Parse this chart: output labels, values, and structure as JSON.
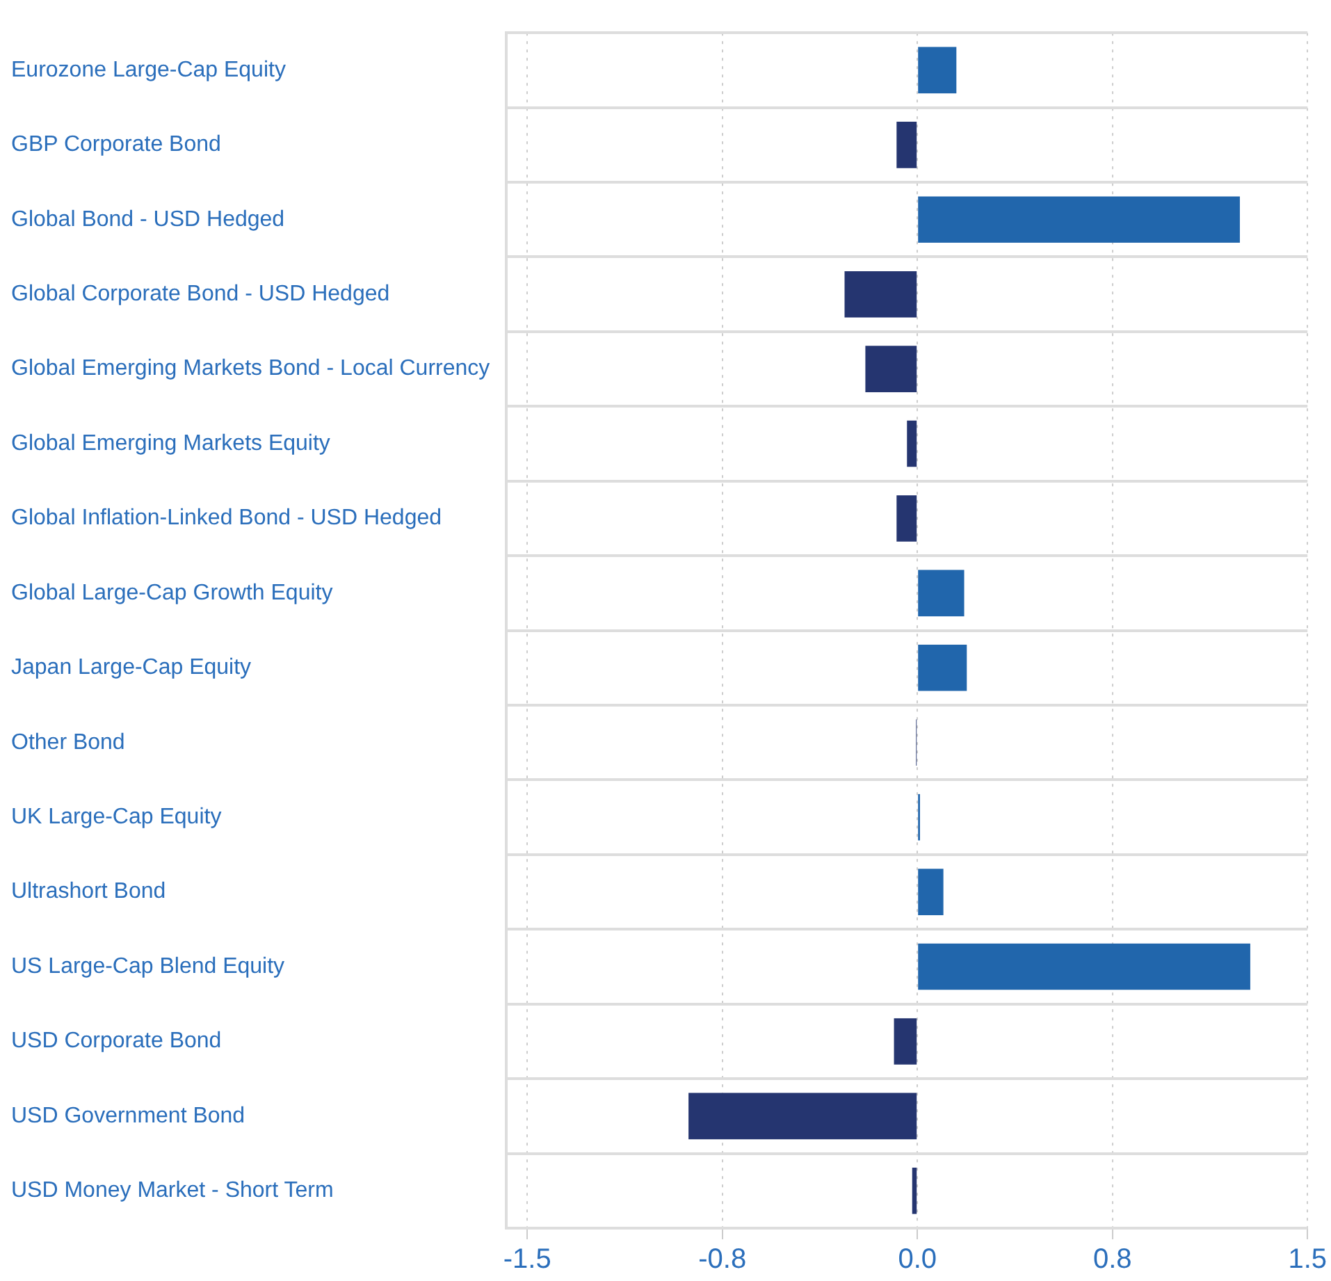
{
  "chart_data": {
    "type": "bar",
    "orientation": "horizontal",
    "categories": [
      "Eurozone Large-Cap Equity",
      "GBP Corporate Bond",
      "Global Bond - USD Hedged",
      "Global Corporate Bond - USD Hedged",
      "Global Emerging Markets Bond - Local Currency",
      "Global Emerging Markets Equity",
      "Global Inflation-Linked Bond - USD Hedged",
      "Global Large-Cap Growth Equity",
      "Japan Large-Cap Equity",
      "Other Bond",
      "UK Large-Cap Equity",
      "Ultrashort Bond",
      "US Large-Cap Blend Equity",
      "USD Corporate Bond",
      "USD Government Bond",
      "USD Money Market - Short Term"
    ],
    "values": [
      0.15,
      -0.08,
      1.24,
      -0.28,
      -0.2,
      -0.04,
      -0.08,
      0.18,
      0.19,
      -0.005,
      0.01,
      0.1,
      1.28,
      -0.09,
      -0.88,
      -0.02
    ],
    "colors": [
      "#2166ac",
      "#253570",
      "#2166ac",
      "#253570",
      "#253570",
      "#253570",
      "#253570",
      "#2166ac",
      "#2166ac",
      "#253570",
      "#2166ac",
      "#2166ac",
      "#2166ac",
      "#253570",
      "#253570",
      "#253570"
    ],
    "xlim": [
      -1.58,
      1.5
    ],
    "xticks": [
      -1.5,
      {
        "value": -0.75,
        "label": "-0.8"
      },
      {
        "value": 0,
        "label": "0.0"
      },
      {
        "value": 0.75,
        "label": "0.8"
      },
      1.5
    ],
    "grid": true,
    "legend": false
  }
}
